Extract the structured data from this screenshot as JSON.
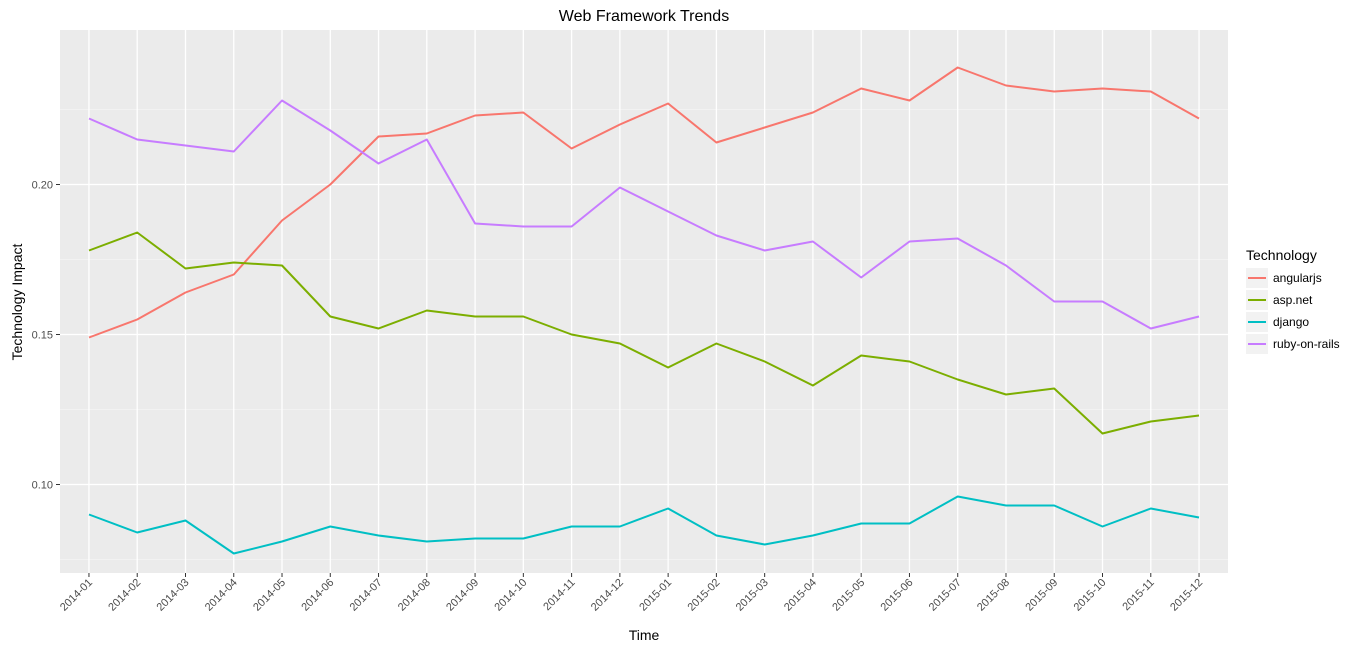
{
  "chart_data": {
    "type": "line",
    "title": "Web Framework Trends",
    "xlabel": "Time",
    "ylabel": "Technology Impact",
    "x": [
      "2014-01",
      "2014-02",
      "2014-03",
      "2014-04",
      "2014-05",
      "2014-06",
      "2014-07",
      "2014-08",
      "2014-09",
      "2014-10",
      "2014-11",
      "2014-12",
      "2015-01",
      "2015-02",
      "2015-03",
      "2015-04",
      "2015-05",
      "2015-06",
      "2015-07",
      "2015-08",
      "2015-09",
      "2015-10",
      "2015-11",
      "2015-12"
    ],
    "yticks": [
      "0.10",
      "0.15",
      "0.20"
    ],
    "ylim": [
      0.0705,
      0.2515
    ],
    "grid": true,
    "legend": {
      "title": "Technology",
      "position": "right"
    },
    "series": [
      {
        "name": "angularjs",
        "color": "#F8766D",
        "values": [
          0.149,
          0.155,
          0.164,
          0.17,
          0.188,
          0.2,
          0.216,
          0.217,
          0.223,
          0.224,
          0.212,
          0.22,
          0.227,
          0.214,
          0.219,
          0.224,
          0.232,
          0.228,
          0.239,
          0.233,
          0.231,
          0.232,
          0.231,
          0.222
        ]
      },
      {
        "name": "asp.net",
        "color": "#7CAE00",
        "values": [
          0.178,
          0.184,
          0.172,
          0.174,
          0.173,
          0.156,
          0.152,
          0.158,
          0.156,
          0.156,
          0.15,
          0.147,
          0.139,
          0.147,
          0.141,
          0.133,
          0.143,
          0.141,
          0.135,
          0.13,
          0.132,
          0.117,
          0.121,
          0.123
        ]
      },
      {
        "name": "django",
        "color": "#00BFC4",
        "values": [
          0.09,
          0.084,
          0.088,
          0.077,
          0.081,
          0.086,
          0.083,
          0.081,
          0.082,
          0.082,
          0.086,
          0.086,
          0.092,
          0.083,
          0.08,
          0.083,
          0.087,
          0.087,
          0.096,
          0.093,
          0.093,
          0.086,
          0.092,
          0.089
        ]
      },
      {
        "name": "ruby-on-rails",
        "color": "#C77CFF",
        "values": [
          0.222,
          0.215,
          0.213,
          0.211,
          0.228,
          0.218,
          0.207,
          0.215,
          0.187,
          0.186,
          0.186,
          0.199,
          0.191,
          0.183,
          0.178,
          0.181,
          0.169,
          0.181,
          0.182,
          0.173,
          0.161,
          0.161,
          0.152,
          0.156
        ]
      }
    ]
  }
}
